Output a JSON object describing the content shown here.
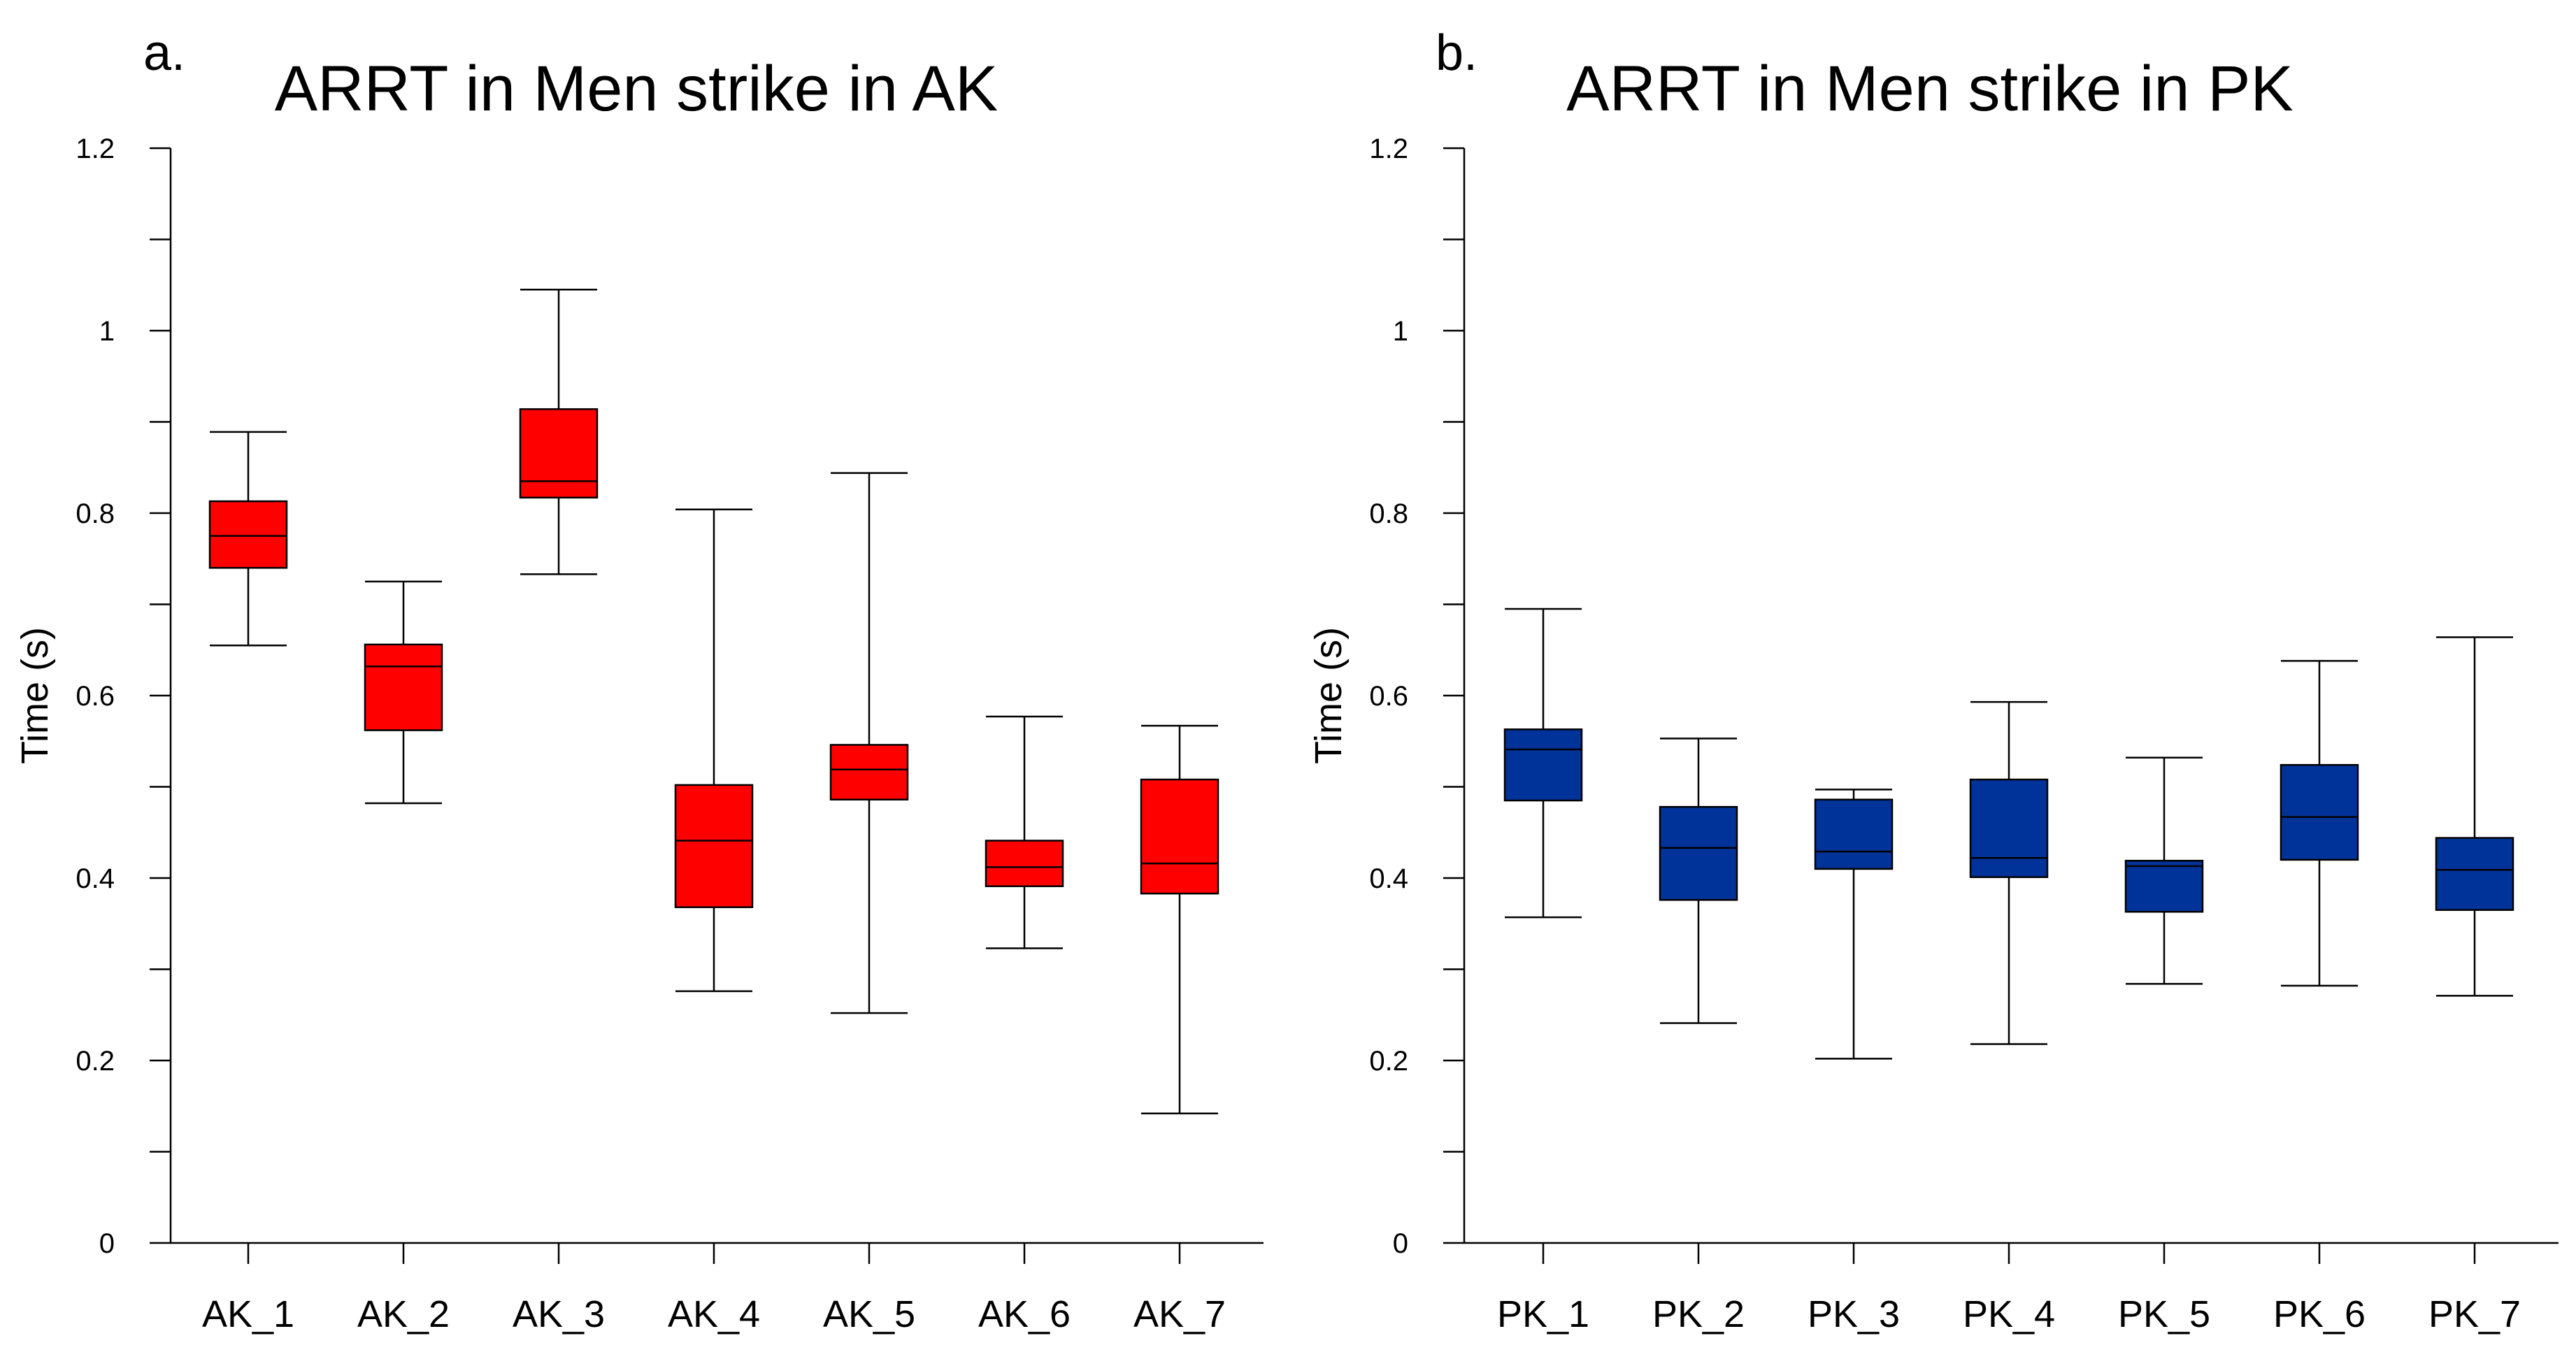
{
  "chart_data": [
    {
      "type": "box",
      "panel_label": "a.",
      "title": "ARRT in Men strike in AK",
      "xlabel": "",
      "ylabel": "Time (s)",
      "ylim": [
        0,
        1.2
      ],
      "yticks": [
        "0",
        "0.2",
        "0.4",
        "0.6",
        "0.8",
        "1",
        "1.2"
      ],
      "color": "#ff0000",
      "categories": [
        "AK_1",
        "AK_2",
        "AK_3",
        "AK_4",
        "AK_5",
        "AK_6",
        "AK_7"
      ],
      "boxes": [
        {
          "min": 0.655,
          "q1": 0.74,
          "median": 0.775,
          "q3": 0.813,
          "max": 0.889
        },
        {
          "min": 0.482,
          "q1": 0.562,
          "median": 0.632,
          "q3": 0.656,
          "max": 0.725
        },
        {
          "min": 0.733,
          "q1": 0.817,
          "median": 0.835,
          "q3": 0.914,
          "max": 1.045
        },
        {
          "min": 0.276,
          "q1": 0.368,
          "median": 0.441,
          "q3": 0.502,
          "max": 0.804
        },
        {
          "min": 0.252,
          "q1": 0.486,
          "median": 0.519,
          "q3": 0.546,
          "max": 0.844
        },
        {
          "min": 0.323,
          "q1": 0.391,
          "median": 0.412,
          "q3": 0.441,
          "max": 0.577
        },
        {
          "min": 0.142,
          "q1": 0.383,
          "median": 0.416,
          "q3": 0.508,
          "max": 0.567
        }
      ]
    },
    {
      "type": "box",
      "panel_label": "b.",
      "title": "ARRT in Men strike in PK",
      "xlabel": "",
      "ylabel": "Time (s)",
      "ylim": [
        0,
        1.2
      ],
      "yticks": [
        "0",
        "0.2",
        "0.4",
        "0.6",
        "0.8",
        "1",
        "1.2"
      ],
      "color": "#003399",
      "categories": [
        "PK_1",
        "PK_2",
        "PK_3",
        "PK_4",
        "PK_5",
        "PK_6",
        "PK_7"
      ],
      "boxes": [
        {
          "min": 0.357,
          "q1": 0.485,
          "median": 0.541,
          "q3": 0.563,
          "max": 0.695
        },
        {
          "min": 0.241,
          "q1": 0.376,
          "median": 0.433,
          "q3": 0.478,
          "max": 0.553
        },
        {
          "min": 0.202,
          "q1": 0.41,
          "median": 0.429,
          "q3": 0.486,
          "max": 0.497
        },
        {
          "min": 0.218,
          "q1": 0.401,
          "median": 0.422,
          "q3": 0.508,
          "max": 0.593
        },
        {
          "min": 0.284,
          "q1": 0.363,
          "median": 0.413,
          "q3": 0.419,
          "max": 0.532
        },
        {
          "min": 0.282,
          "q1": 0.42,
          "median": 0.467,
          "q3": 0.524,
          "max": 0.638
        },
        {
          "min": 0.271,
          "q1": 0.365,
          "median": 0.409,
          "q3": 0.444,
          "max": 0.664
        }
      ]
    }
  ]
}
